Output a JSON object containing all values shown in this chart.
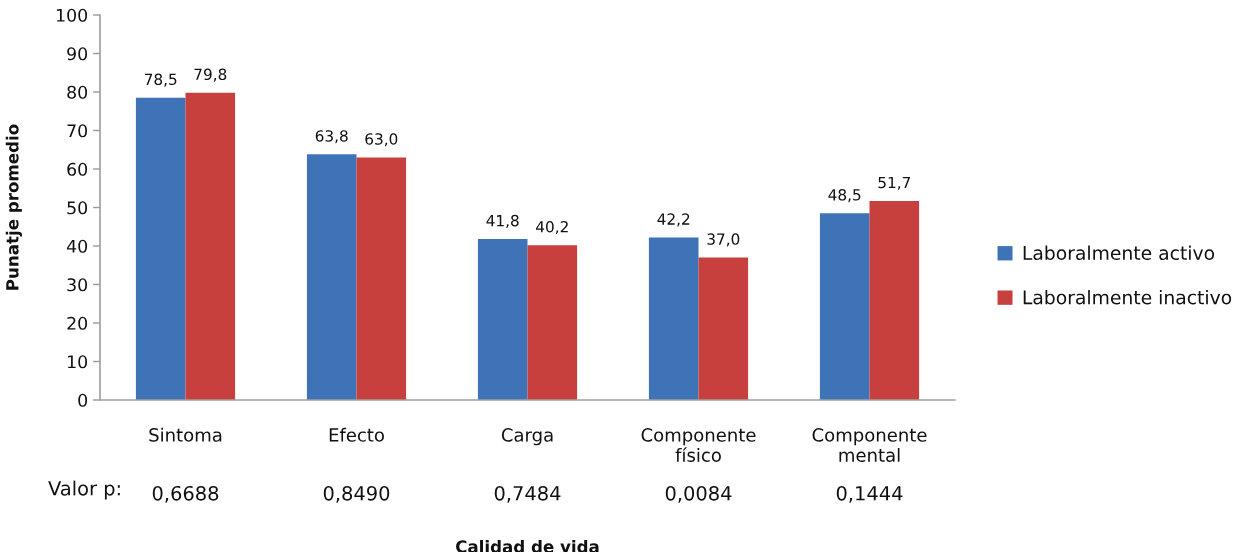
{
  "chart_data": {
    "type": "bar",
    "xlabel": "Calidad de vida",
    "ylabel": "Punatje promedio",
    "categories": [
      "Sintoma",
      "Efecto",
      "Carga",
      "Componente\nfísico",
      "Componente\nmental"
    ],
    "series": [
      {
        "name": "Laboralmente activo",
        "color": "#3f73b8",
        "values": [
          78.5,
          63.8,
          41.8,
          42.2,
          48.5
        ],
        "value_labels": [
          "78,5",
          "63,8",
          "41,8",
          "42,2",
          "48,5"
        ]
      },
      {
        "name": "Laboralmente inactivo",
        "color": "#c8403e",
        "values": [
          79.8,
          63.0,
          40.2,
          37.0,
          51.7
        ],
        "value_labels": [
          "79,8",
          "63,0",
          "40,2",
          "37,0",
          "51,7"
        ]
      }
    ],
    "ylim": [
      0,
      100
    ],
    "yticks": [
      0,
      10,
      20,
      30,
      40,
      50,
      60,
      70,
      80,
      90,
      100
    ],
    "legend": "right",
    "annotations": [
      "Valor p:",
      "0,6688",
      "0,8490",
      "0,7484",
      "0,0084",
      "0,1444"
    ]
  }
}
